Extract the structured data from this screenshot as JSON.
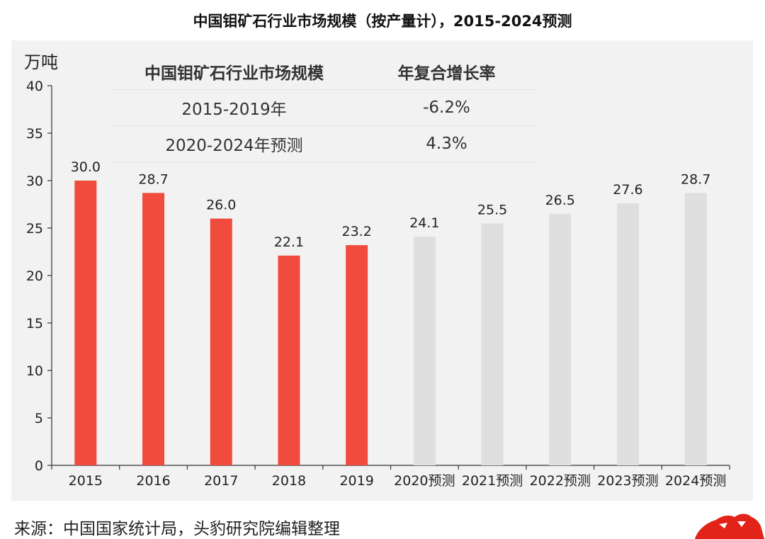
{
  "title": "中国钼矿石行业市场规模（按产量计），2015-2024预测",
  "y_unit": "万吨",
  "table": {
    "headers": [
      "中国钼矿石行业市场规模",
      "年复合增长率"
    ],
    "rows": [
      [
        "2015-2019年",
        "-6.2%"
      ],
      [
        "2020-2024年预测",
        "4.3%"
      ]
    ]
  },
  "source": "来源：中国国家统计局，头豹研究院编辑整理",
  "colors": {
    "actual": "#f04b3c",
    "forecast": "#e0dfe0",
    "panel": "#f2f2f2"
  },
  "chart_data": {
    "type": "bar",
    "title": "中国钼矿石行业市场规模（按产量计），2015-2024预测",
    "ylabel": "万吨",
    "xlabel": "",
    "ylim": [
      0,
      40
    ],
    "yticks": [
      0,
      5,
      10,
      15,
      20,
      25,
      30,
      35,
      40
    ],
    "grid": false,
    "categories": [
      "2015",
      "2016",
      "2017",
      "2018",
      "2019",
      "2020预测",
      "2021预测",
      "2022预测",
      "2023预测",
      "2024预测"
    ],
    "values": [
      30.0,
      28.7,
      26.0,
      22.1,
      23.2,
      24.1,
      25.5,
      26.5,
      27.6,
      28.7
    ],
    "labels": [
      "30.0",
      "28.7",
      "26.0",
      "22.1",
      "23.2",
      "24.1",
      "25.5",
      "26.5",
      "27.6",
      "28.7"
    ],
    "forecast": [
      false,
      false,
      false,
      false,
      false,
      true,
      true,
      true,
      true,
      true
    ]
  }
}
